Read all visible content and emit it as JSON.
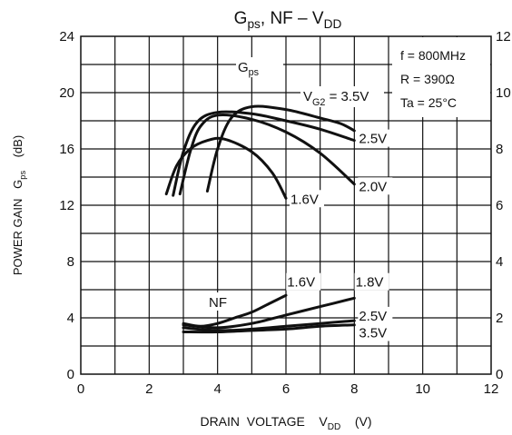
{
  "chart_data": {
    "type": "line",
    "title": {
      "parts": [
        "G",
        "ps",
        ", NF  –  V",
        "DD"
      ]
    },
    "x_axis": {
      "label_parts": [
        "DRAIN  VOLTAGE    V",
        "DD",
        "    (V)"
      ],
      "range": [
        0,
        12
      ],
      "ticks": [
        0,
        2,
        4,
        6,
        8,
        10,
        12
      ],
      "tick_labels": [
        "0",
        "2",
        "4",
        "6",
        "8",
        "10",
        "12"
      ],
      "minor_step": 1
    },
    "y_axis_left": {
      "label_parts": [
        "POWER GAIN   G",
        "ps",
        "    (dB)"
      ],
      "range": [
        0,
        24
      ],
      "ticks": [
        0,
        4,
        8,
        12,
        16,
        20,
        24
      ],
      "tick_labels": [
        "0",
        "4",
        "8",
        "12",
        "16",
        "20",
        "24"
      ],
      "minor_step": 2
    },
    "y_axis_right": {
      "range": [
        0,
        12
      ],
      "ticks": [
        0,
        2,
        4,
        6,
        8,
        10,
        12
      ],
      "tick_labels": [
        "0",
        "2",
        "4",
        "6",
        "8",
        "10",
        "12"
      ]
    },
    "grid": true,
    "conditions": [
      "f = 800MHz",
      "R = 390Ω",
      "Ta = 25°C"
    ],
    "group_labels": {
      "gps": [
        "G",
        "ps"
      ],
      "nf": "NF",
      "vg2_prefix": [
        "V",
        "G2",
        " = 3.5V"
      ]
    },
    "series": [
      {
        "group": "gps",
        "vg2": "3.5V",
        "x": [
          3.7,
          4.0,
          4.4,
          5.0,
          6.0,
          7.0,
          7.6,
          8.0
        ],
        "y": [
          13.0,
          16.0,
          18.2,
          19.0,
          18.8,
          18.2,
          17.8,
          17.3
        ]
      },
      {
        "group": "gps",
        "vg2": "2.5V",
        "x": [
          2.7,
          3.0,
          3.4,
          4.0,
          5.0,
          6.0,
          7.0,
          8.0
        ],
        "y": [
          12.7,
          15.8,
          17.9,
          18.6,
          18.5,
          18.0,
          17.4,
          16.6
        ]
      },
      {
        "group": "gps",
        "vg2": "2.0V",
        "x": [
          2.9,
          3.2,
          3.5,
          4.0,
          5.0,
          6.0,
          7.0,
          8.0
        ],
        "y": [
          12.8,
          15.8,
          17.6,
          18.4,
          18.1,
          17.2,
          15.7,
          13.5
        ]
      },
      {
        "group": "gps",
        "vg2": "1.6V",
        "x": [
          2.5,
          2.8,
          3.2,
          3.7,
          4.2,
          5.0,
          5.6,
          6.0
        ],
        "y": [
          12.8,
          14.8,
          16.0,
          16.6,
          16.7,
          15.8,
          14.3,
          12.5
        ]
      },
      {
        "group": "nf",
        "vg2": "1.6V",
        "x": [
          3.0,
          3.5,
          4.0,
          4.5,
          5.0,
          5.5,
          6.0
        ],
        "y": [
          1.8,
          1.7,
          1.8,
          2.0,
          2.2,
          2.5,
          2.8
        ]
      },
      {
        "group": "nf",
        "vg2": "1.8V",
        "x": [
          3.0,
          4.0,
          5.0,
          6.0,
          7.0,
          8.0
        ],
        "y": [
          1.75,
          1.65,
          1.8,
          2.1,
          2.4,
          2.7
        ]
      },
      {
        "group": "nf",
        "vg2": "2.5V",
        "x": [
          3.0,
          4.0,
          5.0,
          6.0,
          7.0,
          8.0
        ],
        "y": [
          1.65,
          1.55,
          1.6,
          1.7,
          1.8,
          1.9
        ]
      },
      {
        "group": "nf",
        "vg2": "3.5V",
        "x": [
          3.0,
          4.0,
          5.0,
          6.0,
          7.0,
          8.0
        ],
        "y": [
          1.5,
          1.5,
          1.55,
          1.6,
          1.7,
          1.75
        ]
      }
    ],
    "curve_labels": [
      {
        "text": "2.5V",
        "anchor_x": 8.0,
        "anchor_y": 16.8
      },
      {
        "text": "2.0V",
        "anchor_x": 8.0,
        "anchor_y": 13.4
      },
      {
        "text": "1.6V",
        "anchor_x": 6.0,
        "anchor_y": 12.5
      },
      {
        "text": "1.6V",
        "anchor_x": 5.9,
        "anchor_y": 6.6
      },
      {
        "text": "1.8V",
        "anchor_x": 7.9,
        "anchor_y": 6.6
      },
      {
        "text": "2.5V",
        "anchor_x": 8.0,
        "anchor_y": 4.2
      },
      {
        "text": "3.5V",
        "anchor_x": 8.0,
        "anchor_y": 3.0
      }
    ],
    "colors": {
      "line": "#111111",
      "grid": "#111111",
      "background": "#ffffff"
    }
  }
}
